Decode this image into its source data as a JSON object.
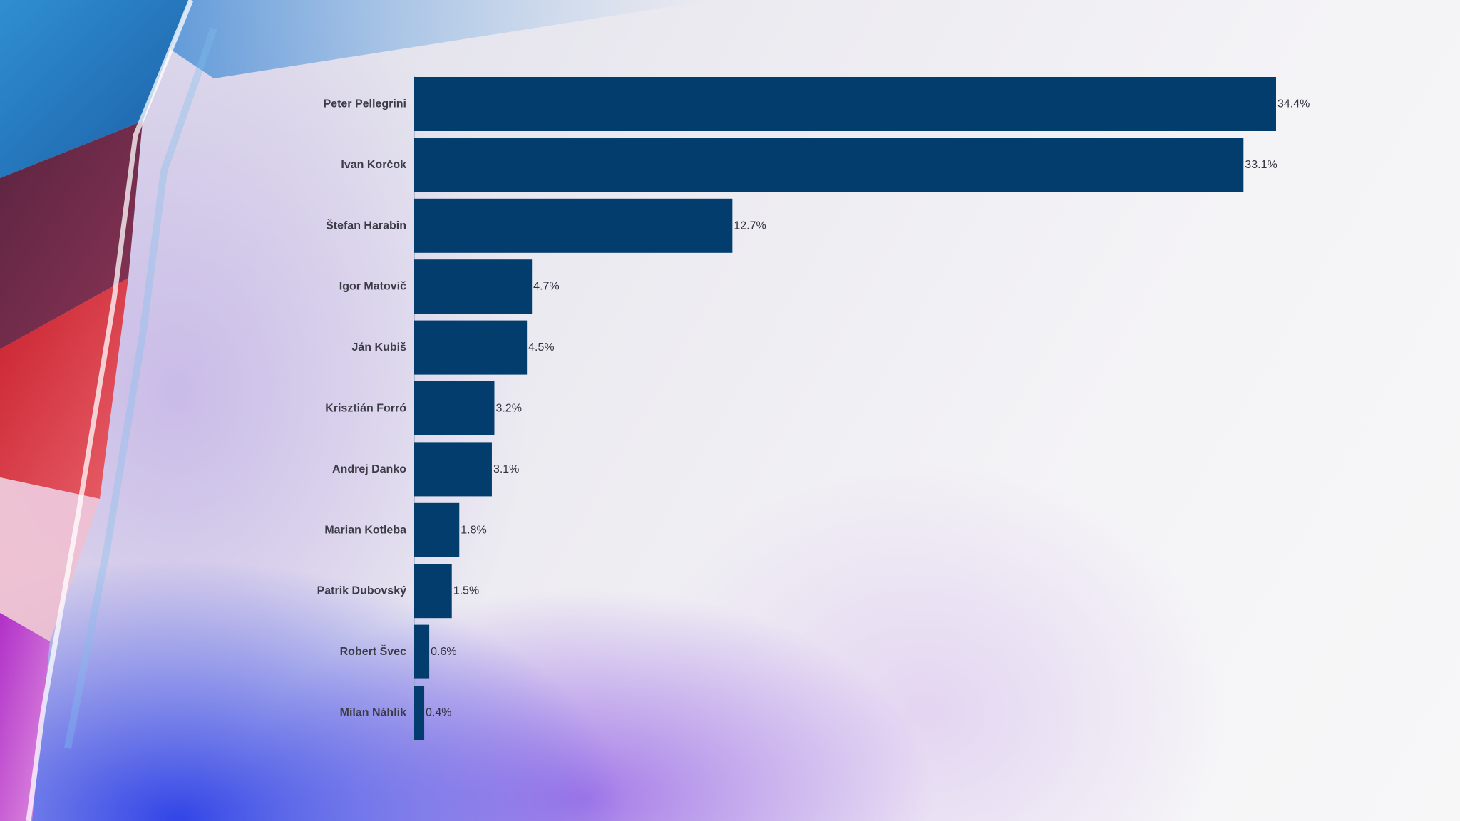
{
  "colors": {
    "bar": "#023d6e"
  },
  "chart_data": {
    "type": "bar",
    "orientation": "horizontal",
    "title": "",
    "xlabel": "",
    "ylabel": "",
    "categories": [
      "Peter Pellegrini",
      "Ivan Korčok",
      "Štefan Harabin",
      "Igor Matovič",
      "Ján Kubiš",
      "Krisztián Forró",
      "Andrej Danko",
      "Marian Kotleba",
      "Patrik Dubovský",
      "Robert Švec",
      "Milan Náhlik"
    ],
    "values": [
      34.4,
      33.1,
      12.7,
      4.7,
      4.5,
      3.2,
      3.1,
      1.8,
      1.5,
      0.6,
      0.4
    ],
    "value_labels": [
      "34.4%",
      "33.1%",
      "12.7%",
      "4.7%",
      "4.5%",
      "3.2%",
      "3.1%",
      "1.8%",
      "1.5%",
      "0.6%",
      "0.4%"
    ],
    "unit": "%",
    "xlim": [
      0,
      34.4
    ],
    "grid": false,
    "legend": false
  }
}
